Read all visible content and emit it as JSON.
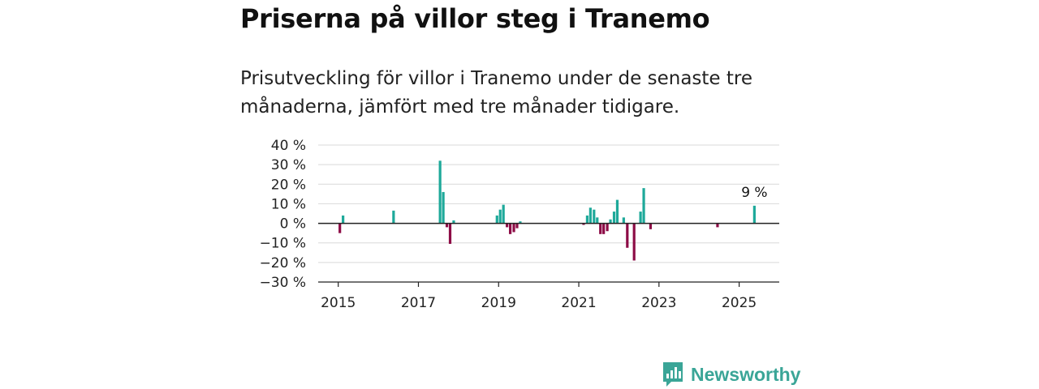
{
  "title": "Priserna på villor steg i Tranemo",
  "subtitle": "Prisutveckling för villor i Tranemo under de senaste tre månaderna, jämfört med tre månader tidigare.",
  "brand": {
    "name": "Newsworthy",
    "icon": "bar-chart-speech-bubble-icon",
    "color": "#3aa597"
  },
  "chart_data": {
    "type": "bar",
    "title": "",
    "xlabel": "",
    "ylabel": "",
    "x_unit": "year (decimal)",
    "xlim": [
      2014.5,
      2026
    ],
    "ylim": [
      -30,
      40
    ],
    "y_ticks": [
      40,
      30,
      20,
      10,
      0,
      -10,
      -20,
      -30
    ],
    "y_tick_labels": [
      "40 %",
      "30 %",
      "20 %",
      "10 %",
      "0 %",
      "−10 %",
      "−20 %",
      "−30 %"
    ],
    "x_ticks": [
      2015,
      2017,
      2019,
      2021,
      2023,
      2025
    ],
    "x_tick_labels": [
      "2015",
      "2017",
      "2019",
      "2021",
      "2023",
      "2025"
    ],
    "grid": true,
    "colors": {
      "positive": "#1ea99a",
      "negative": "#8d0c46",
      "grid": "#d9d9d9",
      "axis": "#222222"
    },
    "annotation": {
      "text": "9 %",
      "x": 2025.38
    },
    "series": [
      {
        "values": [
          {
            "x": 2015.04,
            "y": -5
          },
          {
            "x": 2015.12,
            "y": 4
          },
          {
            "x": 2016.38,
            "y": 6.5
          },
          {
            "x": 2017.54,
            "y": 32
          },
          {
            "x": 2017.62,
            "y": 16
          },
          {
            "x": 2017.71,
            "y": -2
          },
          {
            "x": 2017.79,
            "y": -10.5
          },
          {
            "x": 2017.88,
            "y": 1.5
          },
          {
            "x": 2018.96,
            "y": 4
          },
          {
            "x": 2019.04,
            "y": 7
          },
          {
            "x": 2019.12,
            "y": 9.5
          },
          {
            "x": 2019.21,
            "y": -2
          },
          {
            "x": 2019.29,
            "y": -5.5
          },
          {
            "x": 2019.38,
            "y": -4.5
          },
          {
            "x": 2019.46,
            "y": -2.5
          },
          {
            "x": 2019.54,
            "y": 1
          },
          {
            "x": 2021.12,
            "y": -0.8
          },
          {
            "x": 2021.21,
            "y": 4
          },
          {
            "x": 2021.29,
            "y": 8
          },
          {
            "x": 2021.38,
            "y": 7
          },
          {
            "x": 2021.46,
            "y": 3
          },
          {
            "x": 2021.54,
            "y": -5.5
          },
          {
            "x": 2021.62,
            "y": -5.5
          },
          {
            "x": 2021.71,
            "y": -4
          },
          {
            "x": 2021.79,
            "y": 2
          },
          {
            "x": 2021.88,
            "y": 6
          },
          {
            "x": 2021.96,
            "y": 12
          },
          {
            "x": 2022.12,
            "y": 3
          },
          {
            "x": 2022.21,
            "y": -12.5
          },
          {
            "x": 2022.38,
            "y": -19
          },
          {
            "x": 2022.54,
            "y": 6
          },
          {
            "x": 2022.62,
            "y": 18
          },
          {
            "x": 2022.79,
            "y": -3
          },
          {
            "x": 2024.46,
            "y": -2
          },
          {
            "x": 2025.38,
            "y": 9
          }
        ]
      }
    ]
  }
}
